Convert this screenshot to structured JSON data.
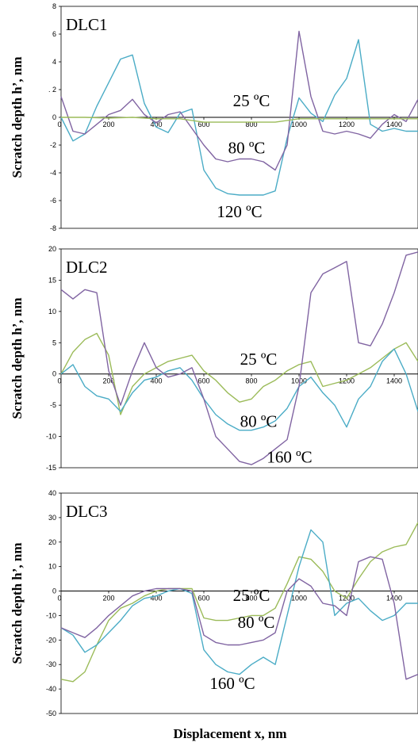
{
  "x_label": "Displacement x, nm",
  "chart_data": [
    {
      "type": "line",
      "panel_label": "DLC1",
      "ylabel": "Scratch depth  h’, nm",
      "ylim": [
        -8,
        8
      ],
      "yticks": [
        "8",
        "6",
        "4",
        ". 2",
        "0",
        "-2",
        "-4",
        "-6",
        "-8"
      ],
      "xticks": [
        "200",
        "400",
        "600",
        "800",
        "1000",
        "1200",
        "1400"
      ],
      "xlim": [
        0,
        1500
      ],
      "grid": false,
      "annotations": [
        {
          "text": "25 ºC",
          "x": 800,
          "y": 0.8
        },
        {
          "text": "80 ºC",
          "x": 780,
          "y": -2.6
        },
        {
          "text": "120 ºC",
          "x": 750,
          "y": -7.2
        }
      ],
      "series": [
        {
          "color": "#4bacc6",
          "x": [
            0,
            50,
            100,
            150,
            200,
            250,
            300,
            350,
            400,
            450,
            500,
            550,
            600,
            650,
            700,
            750,
            800,
            850,
            900,
            950,
            1000,
            1050,
            1100,
            1150,
            1200,
            1250,
            1300,
            1350,
            1400,
            1450,
            1500
          ],
          "y": [
            0,
            -1.7,
            -1.2,
            0.8,
            2.5,
            4.2,
            4.5,
            1.0,
            -0.7,
            -1.1,
            0.3,
            0.6,
            -3.8,
            -5.1,
            -5.5,
            -5.6,
            -5.6,
            -5.6,
            -5.3,
            -1.5,
            1.4,
            0.3,
            -0.3,
            1.6,
            2.8,
            5.6,
            -0.5,
            -1.0,
            -0.8,
            -1.0,
            -1.0
          ]
        },
        {
          "color": "#8064a2",
          "x": [
            0,
            50,
            100,
            150,
            200,
            250,
            300,
            350,
            400,
            450,
            500,
            550,
            600,
            650,
            700,
            750,
            800,
            850,
            900,
            950,
            1000,
            1050,
            1100,
            1150,
            1200,
            1250,
            1300,
            1350,
            1400,
            1450,
            1500
          ],
          "y": [
            1.5,
            -1.0,
            -1.2,
            -0.5,
            0.2,
            0.5,
            1.3,
            0.2,
            -0.4,
            0.2,
            0.4,
            -0.8,
            -2.0,
            -3.0,
            -3.2,
            -3.0,
            -3.0,
            -3.2,
            -3.8,
            -2.0,
            6.2,
            1.5,
            -1.0,
            -1.2,
            -1.0,
            -1.2,
            -1.5,
            -0.5,
            0.2,
            -0.3,
            1.3
          ]
        },
        {
          "color": "#9bbb59",
          "x": [
            0,
            100,
            200,
            300,
            400,
            500,
            600,
            700,
            800,
            900,
            1000,
            1100,
            1200,
            1300,
            1400,
            1500
          ],
          "y": [
            0,
            0,
            -0.05,
            0,
            -0.1,
            -0.1,
            -0.35,
            -0.35,
            -0.35,
            -0.35,
            -0.1,
            -0.1,
            -0.1,
            -0.1,
            -0.1,
            -0.1
          ]
        }
      ]
    },
    {
      "type": "line",
      "panel_label": "DLC2",
      "ylabel": "Scratch depth  h’, nm",
      "ylim": [
        -15,
        20
      ],
      "yticks": [
        "20",
        "15",
        "10",
        "5",
        "0",
        "-5",
        "-10",
        "-15"
      ],
      "xticks": [
        "200",
        "400",
        "600",
        "800",
        "1000",
        "1200",
        "1400"
      ],
      "xlim": [
        0,
        1500
      ],
      "grid": false,
      "annotations": [
        {
          "text": "25 ºC",
          "x": 830,
          "y": 1.5
        },
        {
          "text": "80 ºC",
          "x": 830,
          "y": -8.5
        },
        {
          "text": "160 ºC",
          "x": 960,
          "y": -14.2
        }
      ],
      "series": [
        {
          "color": "#9bbb59",
          "x": [
            0,
            50,
            100,
            150,
            200,
            250,
            300,
            350,
            400,
            450,
            500,
            550,
            600,
            650,
            700,
            750,
            800,
            850,
            900,
            950,
            1000,
            1050,
            1100,
            1150,
            1200,
            1250,
            1300,
            1350,
            1400,
            1450,
            1500
          ],
          "y": [
            0,
            3.5,
            5.5,
            6.5,
            3.0,
            -6.5,
            -2.0,
            0,
            1.0,
            2.0,
            2.5,
            3.0,
            0.5,
            -1.0,
            -3.0,
            -4.5,
            -4.0,
            -2.0,
            -1.0,
            0.5,
            1.5,
            2.0,
            -2.0,
            -1.5,
            -1.0,
            0,
            1.0,
            2.5,
            4.0,
            5.0,
            2.0
          ]
        },
        {
          "color": "#4bacc6",
          "x": [
            0,
            50,
            100,
            150,
            200,
            250,
            300,
            350,
            400,
            450,
            500,
            550,
            600,
            650,
            700,
            750,
            800,
            850,
            900,
            950,
            1000,
            1050,
            1100,
            1150,
            1200,
            1250,
            1300,
            1350,
            1400,
            1450,
            1500
          ],
          "y": [
            0,
            1.5,
            -2.0,
            -3.5,
            -4.0,
            -6.0,
            -3.0,
            -1.0,
            -0.5,
            0.5,
            1.0,
            -1.0,
            -4.0,
            -6.5,
            -8.0,
            -9.0,
            -9.0,
            -8.5,
            -7.5,
            -5.5,
            -2.0,
            -0.5,
            -3.0,
            -5.0,
            -8.5,
            -4.0,
            -2.0,
            2.0,
            4.0,
            0,
            -6.0
          ]
        },
        {
          "color": "#8064a2",
          "x": [
            0,
            50,
            100,
            150,
            200,
            250,
            300,
            350,
            400,
            450,
            500,
            550,
            600,
            650,
            700,
            750,
            800,
            850,
            900,
            950,
            1000,
            1050,
            1100,
            1150,
            1200,
            1250,
            1300,
            1350,
            1400,
            1450,
            1500
          ],
          "y": [
            13.5,
            12.0,
            13.5,
            13.0,
            0.5,
            -5.0,
            0.5,
            5.0,
            1.0,
            -0.5,
            0,
            1.0,
            -4.0,
            -10.0,
            -12.0,
            -14.0,
            -14.5,
            -13.5,
            -12.0,
            -10.5,
            -2.0,
            13.0,
            16.0,
            17.0,
            18.0,
            5.0,
            4.5,
            8.0,
            13.0,
            19.0,
            19.5
          ]
        }
      ]
    },
    {
      "type": "line",
      "panel_label": "DLC3",
      "ylabel": "Scratch depth  h’, nm",
      "ylim": [
        -50,
        40
      ],
      "yticks": [
        "40",
        "30",
        "20",
        "10",
        "0",
        "-10",
        "-20",
        "-30",
        "-40",
        "-50"
      ],
      "xticks": [
        "200",
        "400",
        "600",
        "800",
        "1000",
        "1200",
        "1400"
      ],
      "xlim": [
        0,
        1500
      ],
      "grid": false,
      "annotations": [
        {
          "text": "25 ºC",
          "x": 800,
          "y": -4
        },
        {
          "text": "80 ºC",
          "x": 820,
          "y": -15
        },
        {
          "text": "160 ºC",
          "x": 720,
          "y": -40
        }
      ],
      "series": [
        {
          "color": "#9bbb59",
          "x": [
            0,
            50,
            100,
            150,
            200,
            250,
            300,
            350,
            400,
            450,
            500,
            550,
            600,
            650,
            700,
            750,
            800,
            850,
            900,
            950,
            1000,
            1050,
            1100,
            1150,
            1200,
            1250,
            1300,
            1350,
            1400,
            1450,
            1500
          ],
          "y": [
            -36,
            -37,
            -33,
            -22,
            -12,
            -7,
            -5,
            -2,
            0,
            1,
            1,
            1,
            -11,
            -12,
            -12,
            -11,
            -10,
            -10,
            -7,
            3,
            14,
            13,
            8,
            0,
            -3,
            5,
            12,
            16,
            18,
            19,
            28
          ]
        },
        {
          "color": "#4bacc6",
          "x": [
            0,
            50,
            100,
            150,
            200,
            250,
            300,
            350,
            400,
            450,
            500,
            550,
            600,
            650,
            700,
            750,
            800,
            850,
            900,
            950,
            1000,
            1050,
            1100,
            1150,
            1200,
            1250,
            1300,
            1350,
            1400,
            1450,
            1500
          ],
          "y": [
            -15,
            -18,
            -25,
            -22,
            -17,
            -12,
            -6,
            -3,
            -2,
            0,
            1,
            -1,
            -24,
            -30,
            -33,
            -34,
            -30,
            -27,
            -30,
            -10,
            10,
            25,
            20,
            -10,
            -5,
            -3,
            -8,
            -12,
            -10,
            -5,
            -5
          ]
        },
        {
          "color": "#8064a2",
          "x": [
            0,
            50,
            100,
            150,
            200,
            250,
            300,
            350,
            400,
            450,
            500,
            550,
            600,
            650,
            700,
            750,
            800,
            850,
            900,
            950,
            1000,
            1050,
            1100,
            1150,
            1200,
            1250,
            1300,
            1350,
            1400,
            1450,
            1500
          ],
          "y": [
            -15,
            -17,
            -19,
            -15,
            -10,
            -6,
            -2,
            0,
            1,
            1,
            1,
            0,
            -18,
            -21,
            -22,
            -22,
            -21,
            -20,
            -17,
            0,
            5,
            2,
            -5,
            -6,
            -10,
            12,
            14,
            13,
            -5,
            -36,
            -34
          ]
        }
      ]
    }
  ]
}
